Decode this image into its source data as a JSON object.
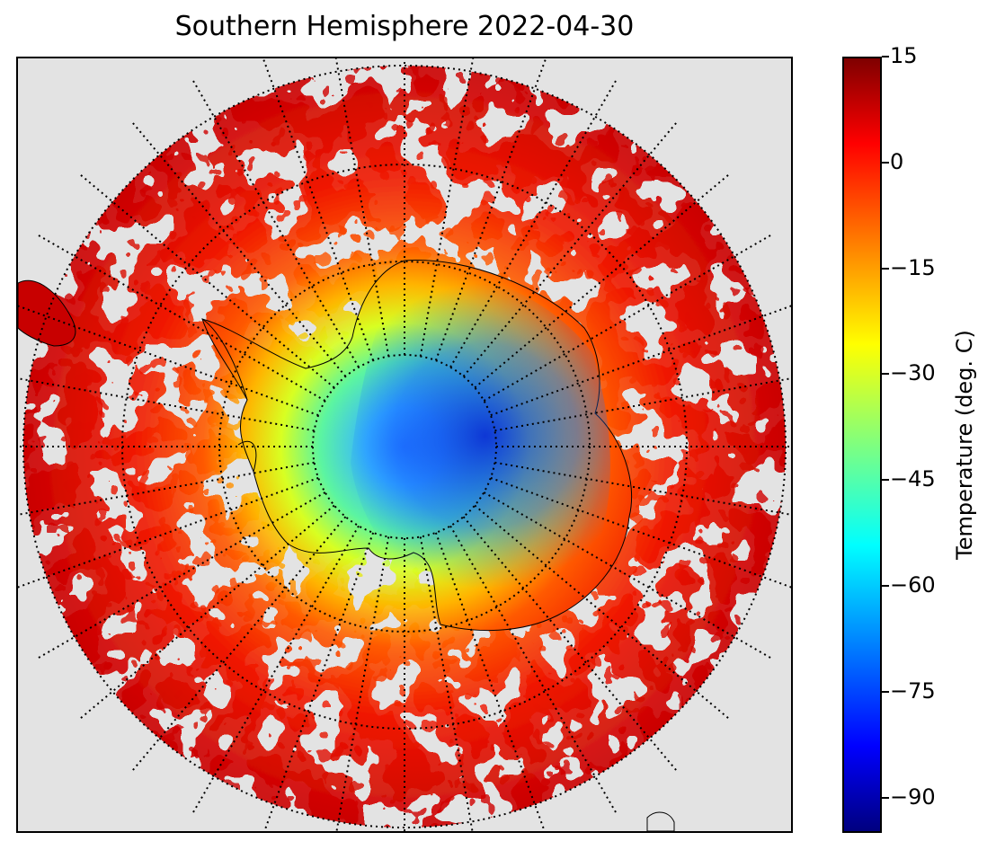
{
  "title": "Southern Hemisphere 2022-04-30",
  "colorbar": {
    "label": "Temperature (deg. C)",
    "min": -95,
    "max": 15,
    "colormap": "jet",
    "ticks": [
      {
        "value": 15,
        "label": "15"
      },
      {
        "value": 0,
        "label": "0"
      },
      {
        "value": -15,
        "label": "−15"
      },
      {
        "value": -30,
        "label": "−30"
      },
      {
        "value": -45,
        "label": "−45"
      },
      {
        "value": -60,
        "label": "−60"
      },
      {
        "value": -75,
        "label": "−75"
      },
      {
        "value": -90,
        "label": "−90"
      }
    ]
  },
  "map": {
    "projection": "south polar stereographic",
    "background_color": "#e3e3e3",
    "graticule": "dotted",
    "meridian_spacing_deg": 10,
    "parallel_spacing_deg": 10,
    "features": [
      "Antarctica coastline",
      "Southern Ocean",
      "South America tip",
      "Australia edge"
    ]
  }
}
